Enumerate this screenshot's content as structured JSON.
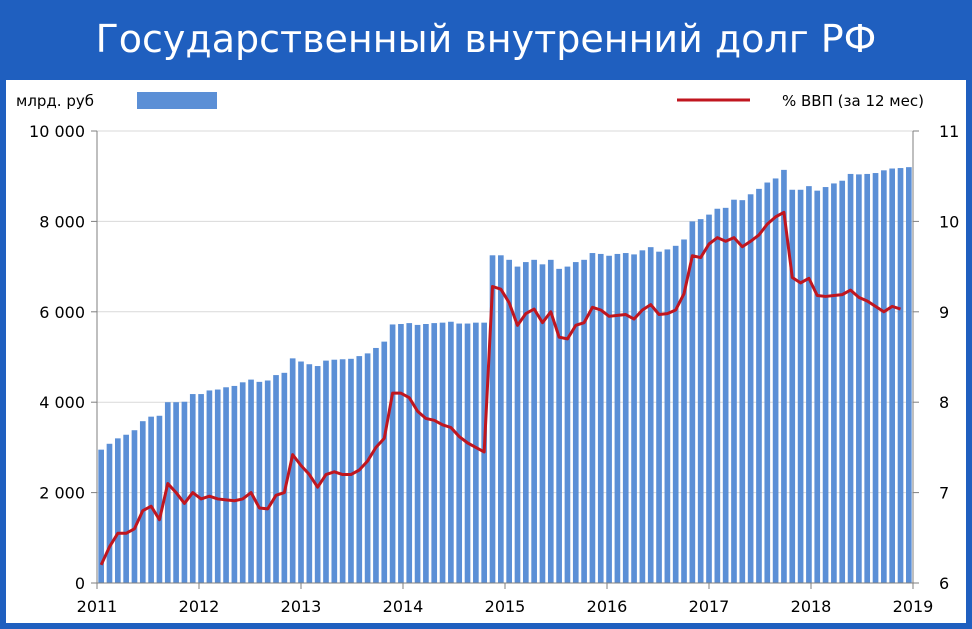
{
  "title": "Государственный внутренний долг РФ",
  "colors": {
    "bar": "#5b8fd6",
    "line": "#c0161f",
    "grid": "#d9d9d9",
    "frame": "#1f5fbf"
  },
  "chart_data": {
    "type": "bar+line",
    "series": [
      {
        "name": "млрд. руб",
        "type": "bar",
        "axis": "left",
        "values": [
          2950,
          3080,
          3200,
          3280,
          3380,
          3580,
          3680,
          3700,
          4000,
          4000,
          4010,
          4180,
          4180,
          4260,
          4280,
          4330,
          4360,
          4440,
          4500,
          4450,
          4480,
          4600,
          4650,
          4970,
          4900,
          4840,
          4800,
          4920,
          4940,
          4950,
          4960,
          5020,
          5080,
          5200,
          5340,
          5720,
          5730,
          5750,
          5710,
          5730,
          5750,
          5760,
          5780,
          5740,
          5740,
          5760,
          5760,
          7250,
          7250,
          7150,
          7000,
          7100,
          7150,
          7050,
          7150,
          6950,
          7000,
          7100,
          7150,
          7300,
          7280,
          7240,
          7280,
          7300,
          7270,
          7360,
          7430,
          7330,
          7380,
          7460,
          7600,
          8000,
          8050,
          8150,
          8280,
          8300,
          8480,
          8470,
          8600,
          8720,
          8860,
          8950,
          9140,
          8700,
          8700,
          8780,
          8680,
          8760,
          8840,
          8900,
          9050,
          9040,
          9050,
          9070,
          9130,
          9170,
          9180,
          9200
        ]
      },
      {
        "name": "% ВВП (за 12 мес)",
        "type": "line",
        "axis": "right",
        "values": [
          6.2,
          6.4,
          6.55,
          6.55,
          6.6,
          6.8,
          6.85,
          6.7,
          7.1,
          7.0,
          6.88,
          7.0,
          6.93,
          6.96,
          6.93,
          6.92,
          6.91,
          6.93,
          7.0,
          6.83,
          6.82,
          6.97,
          7.0,
          7.42,
          7.3,
          7.2,
          7.06,
          7.2,
          7.23,
          7.2,
          7.2,
          7.25,
          7.35,
          7.5,
          7.6,
          8.1,
          8.1,
          8.05,
          7.9,
          7.82,
          7.8,
          7.75,
          7.72,
          7.62,
          7.55,
          7.5,
          7.45,
          9.28,
          9.25,
          9.1,
          8.85,
          8.98,
          9.03,
          8.88,
          9.0,
          8.72,
          8.7,
          8.85,
          8.88,
          9.05,
          9.02,
          8.95,
          8.96,
          8.97,
          8.92,
          9.02,
          9.08,
          8.97,
          8.98,
          9.02,
          9.2,
          9.62,
          9.6,
          9.75,
          9.82,
          9.78,
          9.82,
          9.72,
          9.78,
          9.85,
          9.97,
          10.05,
          10.1,
          9.38,
          9.32,
          9.37,
          9.18,
          9.17,
          9.18,
          9.19,
          9.24,
          9.16,
          9.12,
          9.06,
          9.0,
          9.06,
          9.03
        ]
      }
    ],
    "y_left": {
      "label": "млрд. руб",
      "min": 0,
      "max": 10000,
      "ticks": [
        "0",
        "2 000",
        "4 000",
        "6 000",
        "8 000",
        "10 000"
      ]
    },
    "y_right": {
      "label": "% ВВП (за 12 мес)",
      "min": 6,
      "max": 11,
      "ticks": [
        "6",
        "7",
        "8",
        "9",
        "10",
        "11"
      ]
    },
    "x": {
      "start_year": 2011,
      "end_year": 2019,
      "ticks": [
        "2011",
        "2012",
        "2013",
        "2014",
        "2015",
        "2016",
        "2017",
        "2018",
        "2019"
      ]
    },
    "legend": {
      "placement": "top",
      "bar_label": "млрд. руб",
      "line_label": "% ВВП (за 12 мес)"
    },
    "grid": true
  }
}
